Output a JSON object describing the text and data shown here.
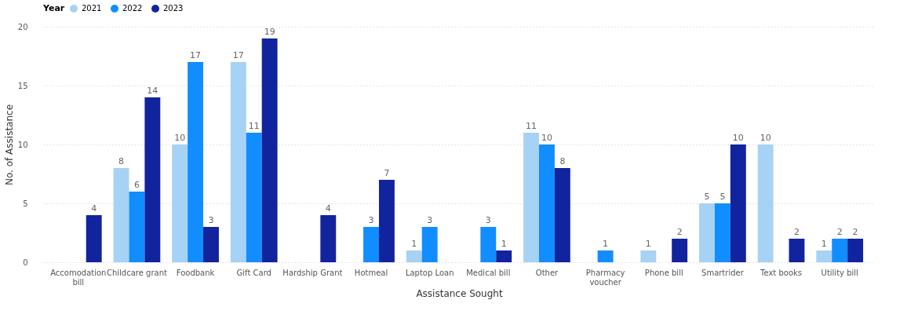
{
  "chart_data": {
    "type": "bar",
    "xlabel": "Assistance Sought",
    "ylabel": "No. of Assistance",
    "legend_title": "Year",
    "categories": [
      "Accomodation bill",
      "Childcare grant",
      "Foodbank",
      "Gift Card",
      "Hardship Grant",
      "Hotmeal",
      "Laptop Loan",
      "Medical bill",
      "Other",
      "Pharmacy voucher",
      "Phone bill",
      "Smartrider",
      "Text books",
      "Utility bill"
    ],
    "series": [
      {
        "name": "2021",
        "color": "#a6d2f5",
        "values": [
          null,
          8,
          10,
          17,
          null,
          null,
          1,
          null,
          11,
          null,
          1,
          5,
          10,
          1
        ]
      },
      {
        "name": "2022",
        "color": "#118dff",
        "values": [
          null,
          6,
          17,
          11,
          null,
          3,
          3,
          3,
          10,
          1,
          null,
          5,
          null,
          2
        ]
      },
      {
        "name": "2023",
        "color": "#12239e",
        "values": [
          4,
          14,
          3,
          19,
          4,
          7,
          null,
          1,
          8,
          null,
          2,
          10,
          2,
          2
        ]
      }
    ],
    "ylim": [
      0,
      20
    ],
    "yticks": [
      0,
      5,
      10,
      15,
      20
    ],
    "grid": "y",
    "legend": "top left",
    "data_labels": true
  }
}
